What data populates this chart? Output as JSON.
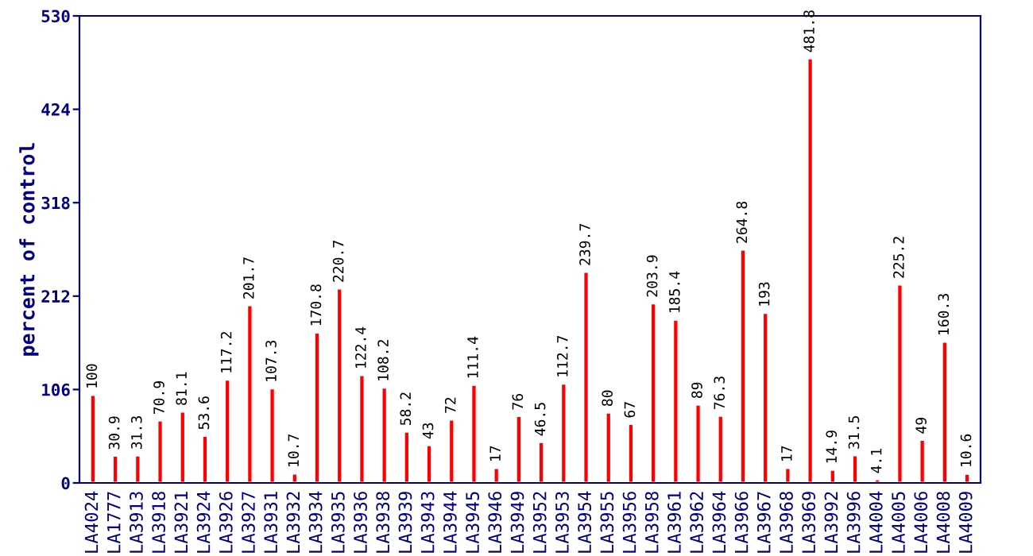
{
  "chart_data": {
    "type": "bar",
    "ylabel": "percent of control",
    "categories": [
      "LA4024",
      "LA1777",
      "LA3913",
      "LA3918",
      "LA3921",
      "LA3924",
      "LA3926",
      "LA3927",
      "LA3931",
      "LA3932",
      "LA3934",
      "LA3935",
      "LA3936",
      "LA3938",
      "LA3939",
      "LA3943",
      "LA3944",
      "LA3945",
      "LA3946",
      "LA3949",
      "LA3952",
      "LA3953",
      "LA3954",
      "LA3955",
      "LA3956",
      "LA3958",
      "LA3961",
      "LA3962",
      "LA3964",
      "LA3966",
      "LA3967",
      "LA3968",
      "LA3969",
      "LA3992",
      "LA3996",
      "LA4004",
      "LA4005",
      "LA4006",
      "LA4008",
      "LA4009"
    ],
    "values": [
      100,
      30.9,
      31.3,
      70.9,
      81.1,
      53.6,
      117.2,
      201.7,
      107.3,
      10.7,
      170.8,
      220.7,
      122.4,
      108.2,
      58.2,
      43,
      72,
      111.4,
      17,
      76,
      46.5,
      112.7,
      239.7,
      80,
      67,
      203.9,
      185.4,
      89,
      76.3,
      264.8,
      193,
      17,
      481.8,
      14.9,
      31.5,
      4.1,
      225.2,
      49,
      160.3,
      10.6
    ],
    "color": "#ff0000",
    "ylim": [
      0,
      530
    ],
    "yticks": [
      0,
      106,
      212,
      318,
      424,
      530
    ],
    "grid": false,
    "data_labels": true
  }
}
